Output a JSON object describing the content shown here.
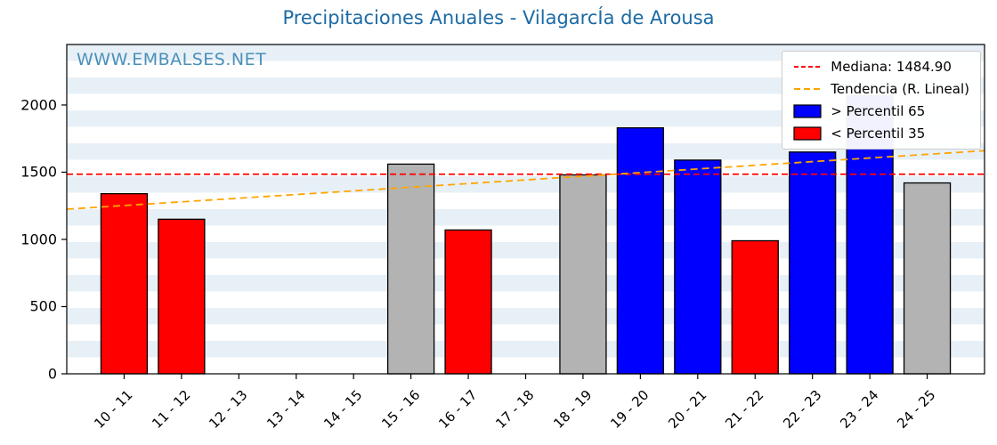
{
  "title": "Precipitaciones Anuales - VilagarcÍa de Arousa",
  "watermark": "WWW.EMBALSES.NET",
  "legend": {
    "median_label": "Mediana: 1484.90",
    "trend_label": "Tendencia (R. Lineal)",
    "p65_label": "> Percentil 65",
    "p35_label": "< Percentil 35"
  },
  "colors": {
    "title": "#1b6aa5",
    "watermark": "#4a90b8",
    "median_line": "#ff0000",
    "trend_line": "#ffa500",
    "bar_blue": "#0000ff",
    "bar_red": "#ff0000",
    "bar_gray": "#b3b3b3",
    "bar_edge": "#000000",
    "stripe": "#e8f0f7",
    "axis": "#000000"
  },
  "chart_data": {
    "type": "bar",
    "title": "Precipitaciones Anuales - VilagarcÍa de Arousa",
    "categories": [
      "10 - 11",
      "11 - 12",
      "12 - 13",
      "13 - 14",
      "14 - 15",
      "15 - 16",
      "16 - 17",
      "17 - 18",
      "18 - 19",
      "19 - 20",
      "20 - 21",
      "21 - 22",
      "22 - 23",
      "23 - 24",
      "24 - 25"
    ],
    "values": [
      1340,
      1150,
      0,
      0,
      0,
      1560,
      1070,
      0,
      1480,
      1830,
      1590,
      990,
      1650,
      2070,
      1420
    ],
    "bar_colors": [
      "red",
      "red",
      null,
      null,
      null,
      "gray",
      "red",
      null,
      "gray",
      "blue",
      "blue",
      "red",
      "blue",
      "blue",
      "gray"
    ],
    "median": 1484.9,
    "trend": {
      "start": 1225,
      "end": 1660
    },
    "xlabel": "",
    "ylabel": "",
    "yticks": [
      0,
      500,
      1000,
      1500,
      2000
    ],
    "ylim": [
      0,
      2450
    ],
    "grid": "striped horizontal bands",
    "legend_position": "upper right",
    "legend_entries": [
      "Mediana: 1484.90",
      "Tendencia (R. Lineal)",
      "> Percentil 65",
      "< Percentil 35"
    ]
  }
}
